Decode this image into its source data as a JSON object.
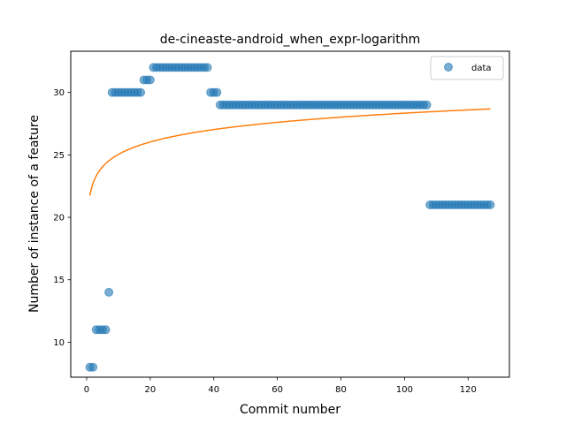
{
  "chart_data": {
    "type": "scatter",
    "title": "de-cineaste-android_when_expr-logarithm",
    "xlabel": "Commit number",
    "ylabel": "Number of instance of a feature",
    "xlim": [
      -5,
      133
    ],
    "ylim": [
      7.2,
      33.3
    ],
    "xticks": [
      0,
      20,
      40,
      60,
      80,
      100,
      120
    ],
    "yticks": [
      10,
      15,
      20,
      25,
      30
    ],
    "grid": false,
    "legend_position": "top-right",
    "series": [
      {
        "name": "data",
        "kind": "scatter",
        "color": "#1f77b4",
        "segments": [
          {
            "x_start": 1,
            "x_end": 2,
            "y": 8
          },
          {
            "x_start": 3,
            "x_end": 6,
            "y": 11
          },
          {
            "x_start": 7,
            "x_end": 7,
            "y": 14
          },
          {
            "x_start": 8,
            "x_end": 17,
            "y": 30
          },
          {
            "x_start": 18,
            "x_end": 20,
            "y": 31
          },
          {
            "x_start": 21,
            "x_end": 38,
            "y": 32
          },
          {
            "x_start": 39,
            "x_end": 41,
            "y": 30
          },
          {
            "x_start": 42,
            "x_end": 107,
            "y": 29
          },
          {
            "x_start": 108,
            "x_end": 127,
            "y": 21
          }
        ]
      },
      {
        "kind": "line",
        "color": "#ff7f0e",
        "model": "logarithmic",
        "a": 21.74,
        "b": 1.433,
        "x_range": [
          1,
          127
        ]
      }
    ]
  }
}
